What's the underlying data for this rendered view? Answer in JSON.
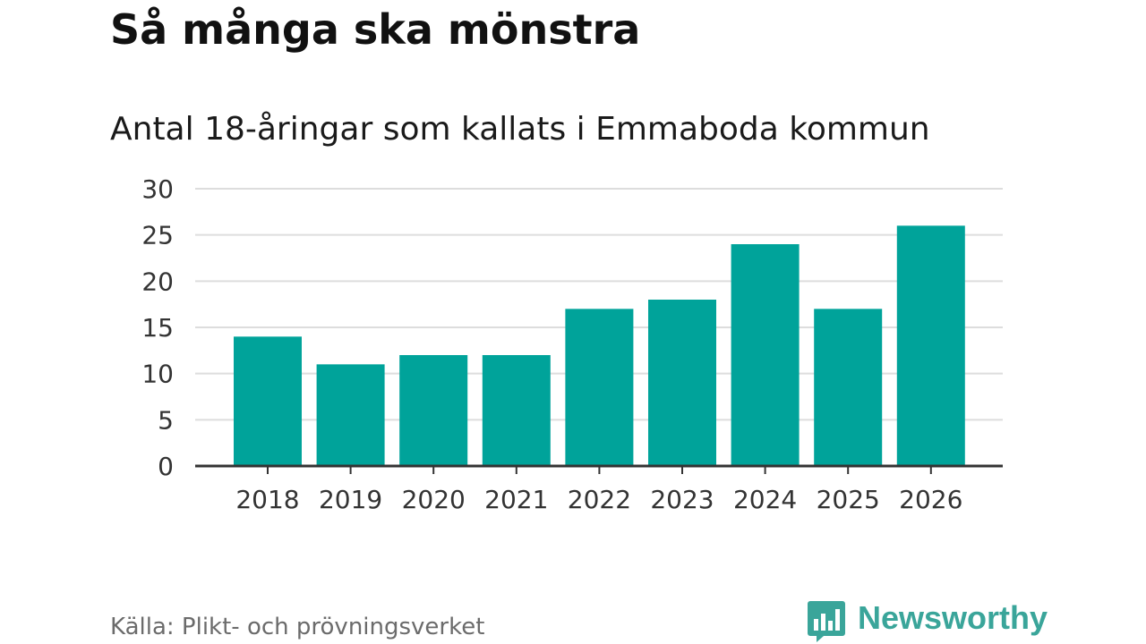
{
  "chart_data": {
    "type": "bar",
    "title": "Så många ska mönstra",
    "subtitle": "Antal 18-åringar som kallats i Emmaboda kommun",
    "categories": [
      "2018",
      "2019",
      "2020",
      "2021",
      "2022",
      "2023",
      "2024",
      "2025",
      "2026"
    ],
    "values": [
      14,
      11,
      12,
      12,
      17,
      18,
      24,
      17,
      26
    ],
    "ylim": [
      0,
      30
    ],
    "yticks": [
      0,
      5,
      10,
      15,
      20,
      25,
      30
    ],
    "grid": true,
    "bar_color": "#00a39a",
    "xlabel": "",
    "ylabel": ""
  },
  "source": "Källa: Plikt- och prövningsverket",
  "brand": {
    "name": "Newsworthy",
    "color": "#3aa59a",
    "icon": "bar-chart-speech-bubble-icon"
  }
}
